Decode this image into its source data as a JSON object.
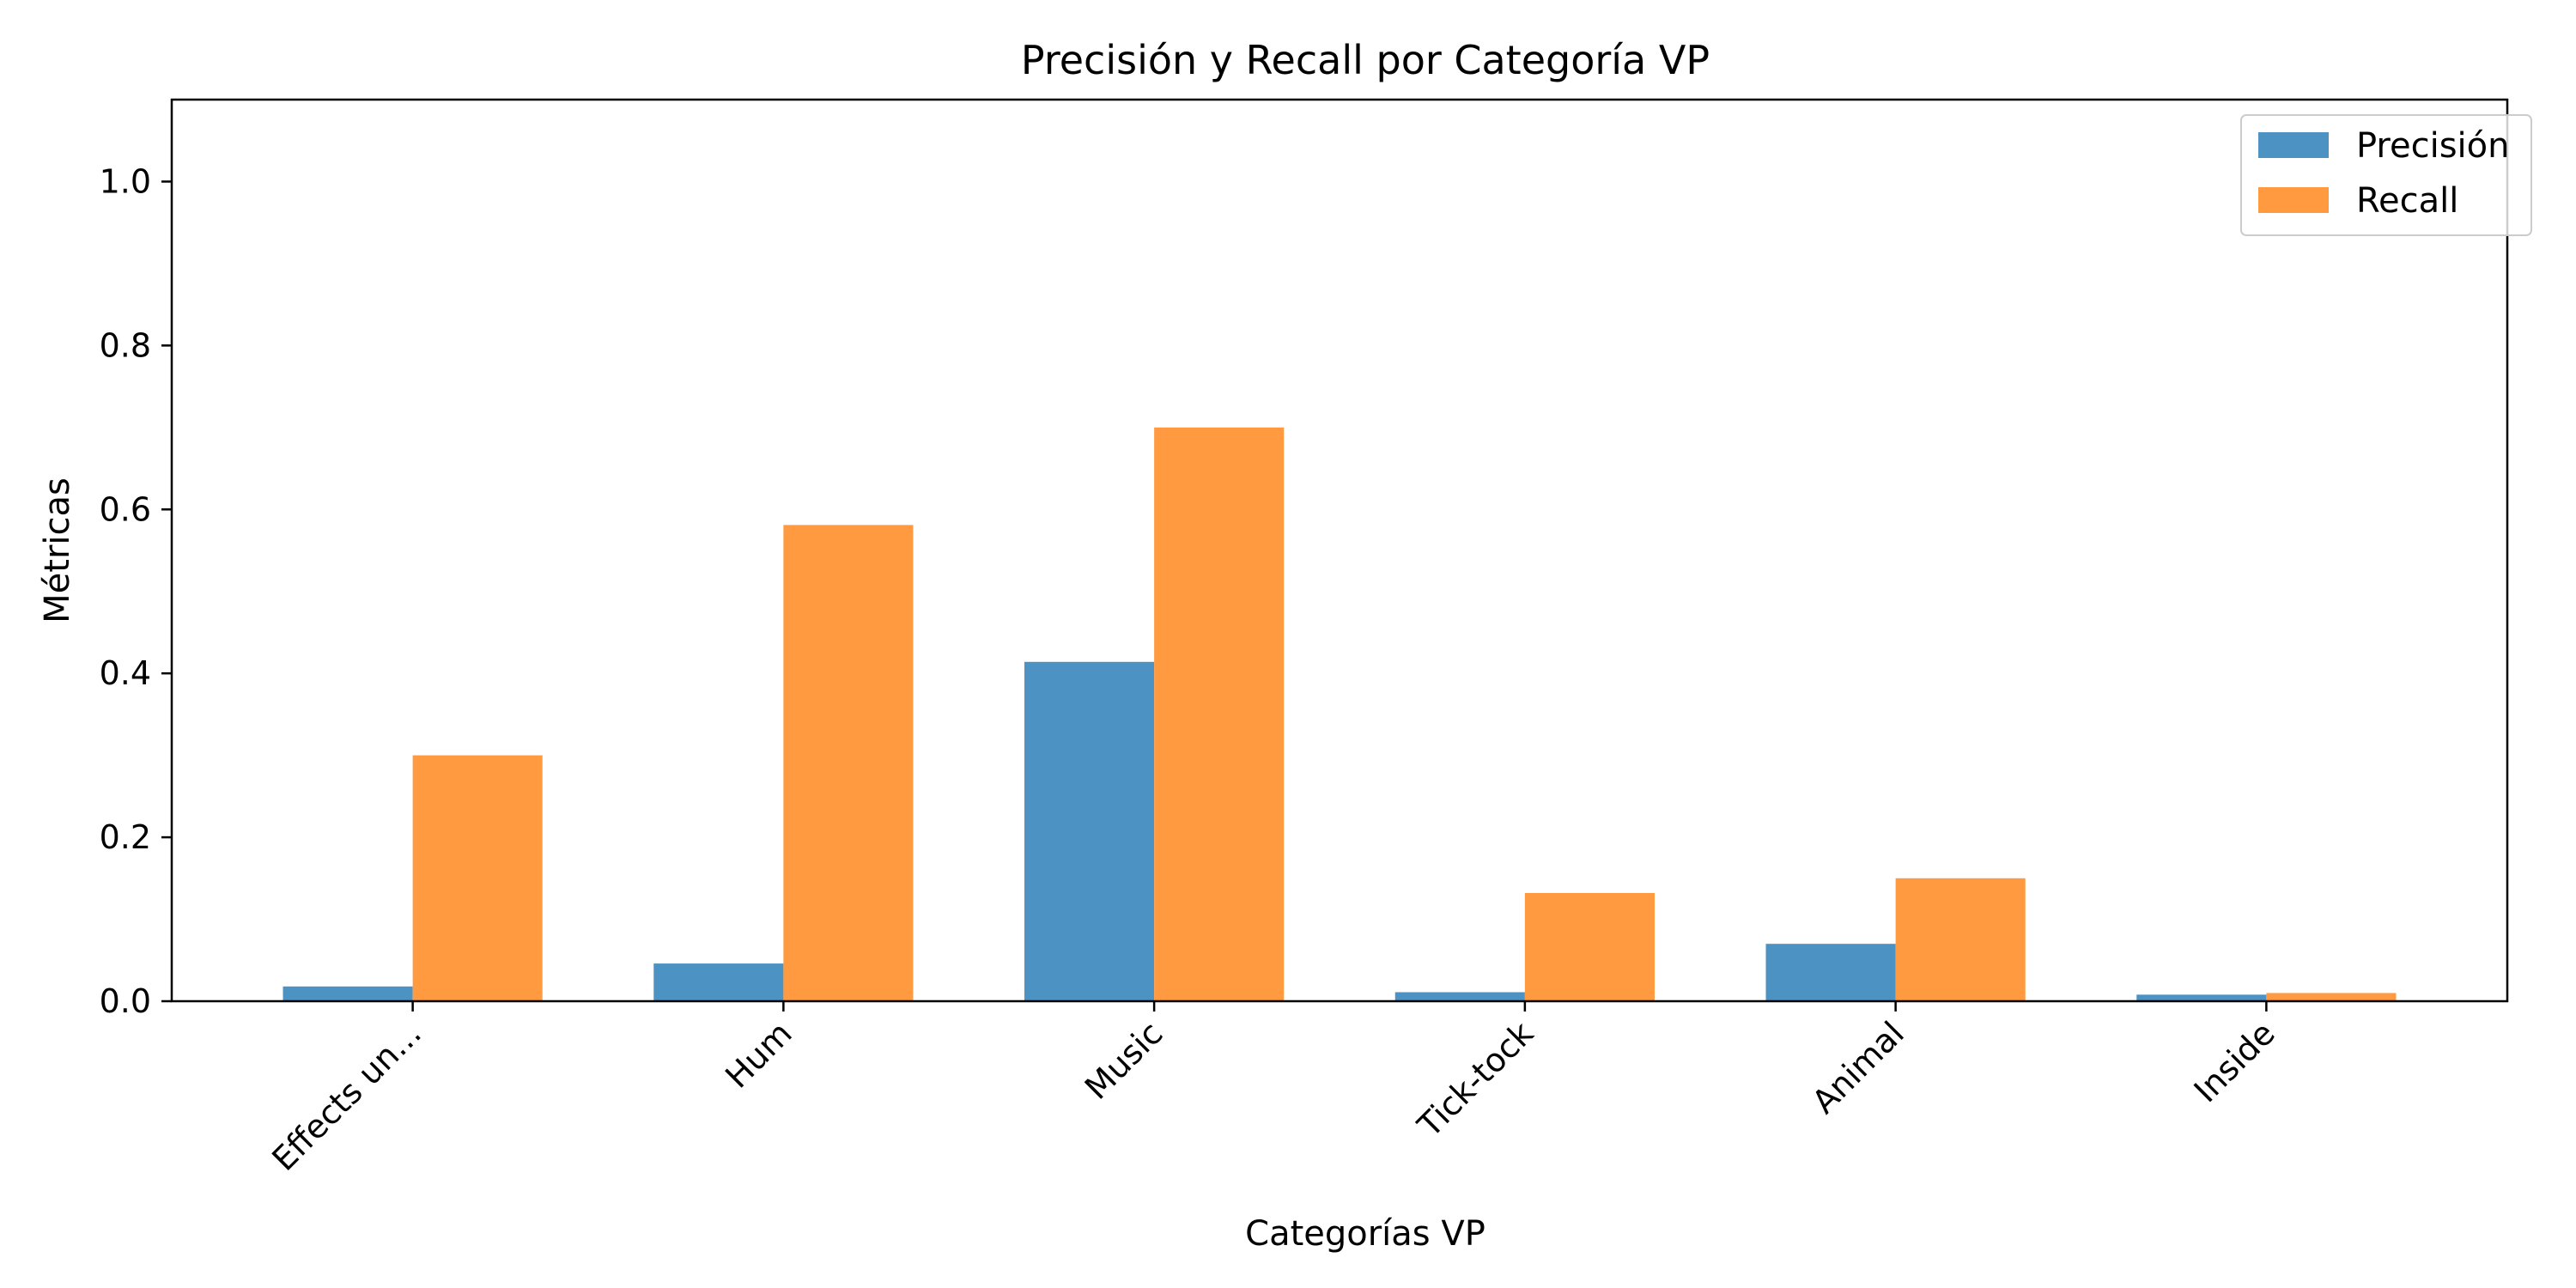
{
  "chart_data": {
    "type": "bar",
    "title": "Precisión y Recall por Categoría VP",
    "xlabel": "Categorías VP",
    "ylabel": "Métricas",
    "categories": [
      "Effects un...",
      "Hum",
      "Music",
      "Tick-tock",
      "Animal",
      "Inside"
    ],
    "series": [
      {
        "name": "Precisión",
        "color": "#4c93c4",
        "values": [
          0.018,
          0.046,
          0.414,
          0.011,
          0.07,
          0.008
        ]
      },
      {
        "name": "Recall",
        "color": "#ff9a40",
        "values": [
          0.3,
          0.581,
          0.7,
          0.132,
          0.15,
          0.01
        ]
      }
    ],
    "ylim": [
      0,
      1.1
    ],
    "yticks": [
      0.0,
      0.2,
      0.4,
      0.6,
      0.8,
      1.0
    ],
    "ytick_labels": [
      "0.0",
      "0.2",
      "0.4",
      "0.6",
      "0.8",
      "1.0"
    ],
    "grid": false,
    "legend_position": "top-right"
  }
}
